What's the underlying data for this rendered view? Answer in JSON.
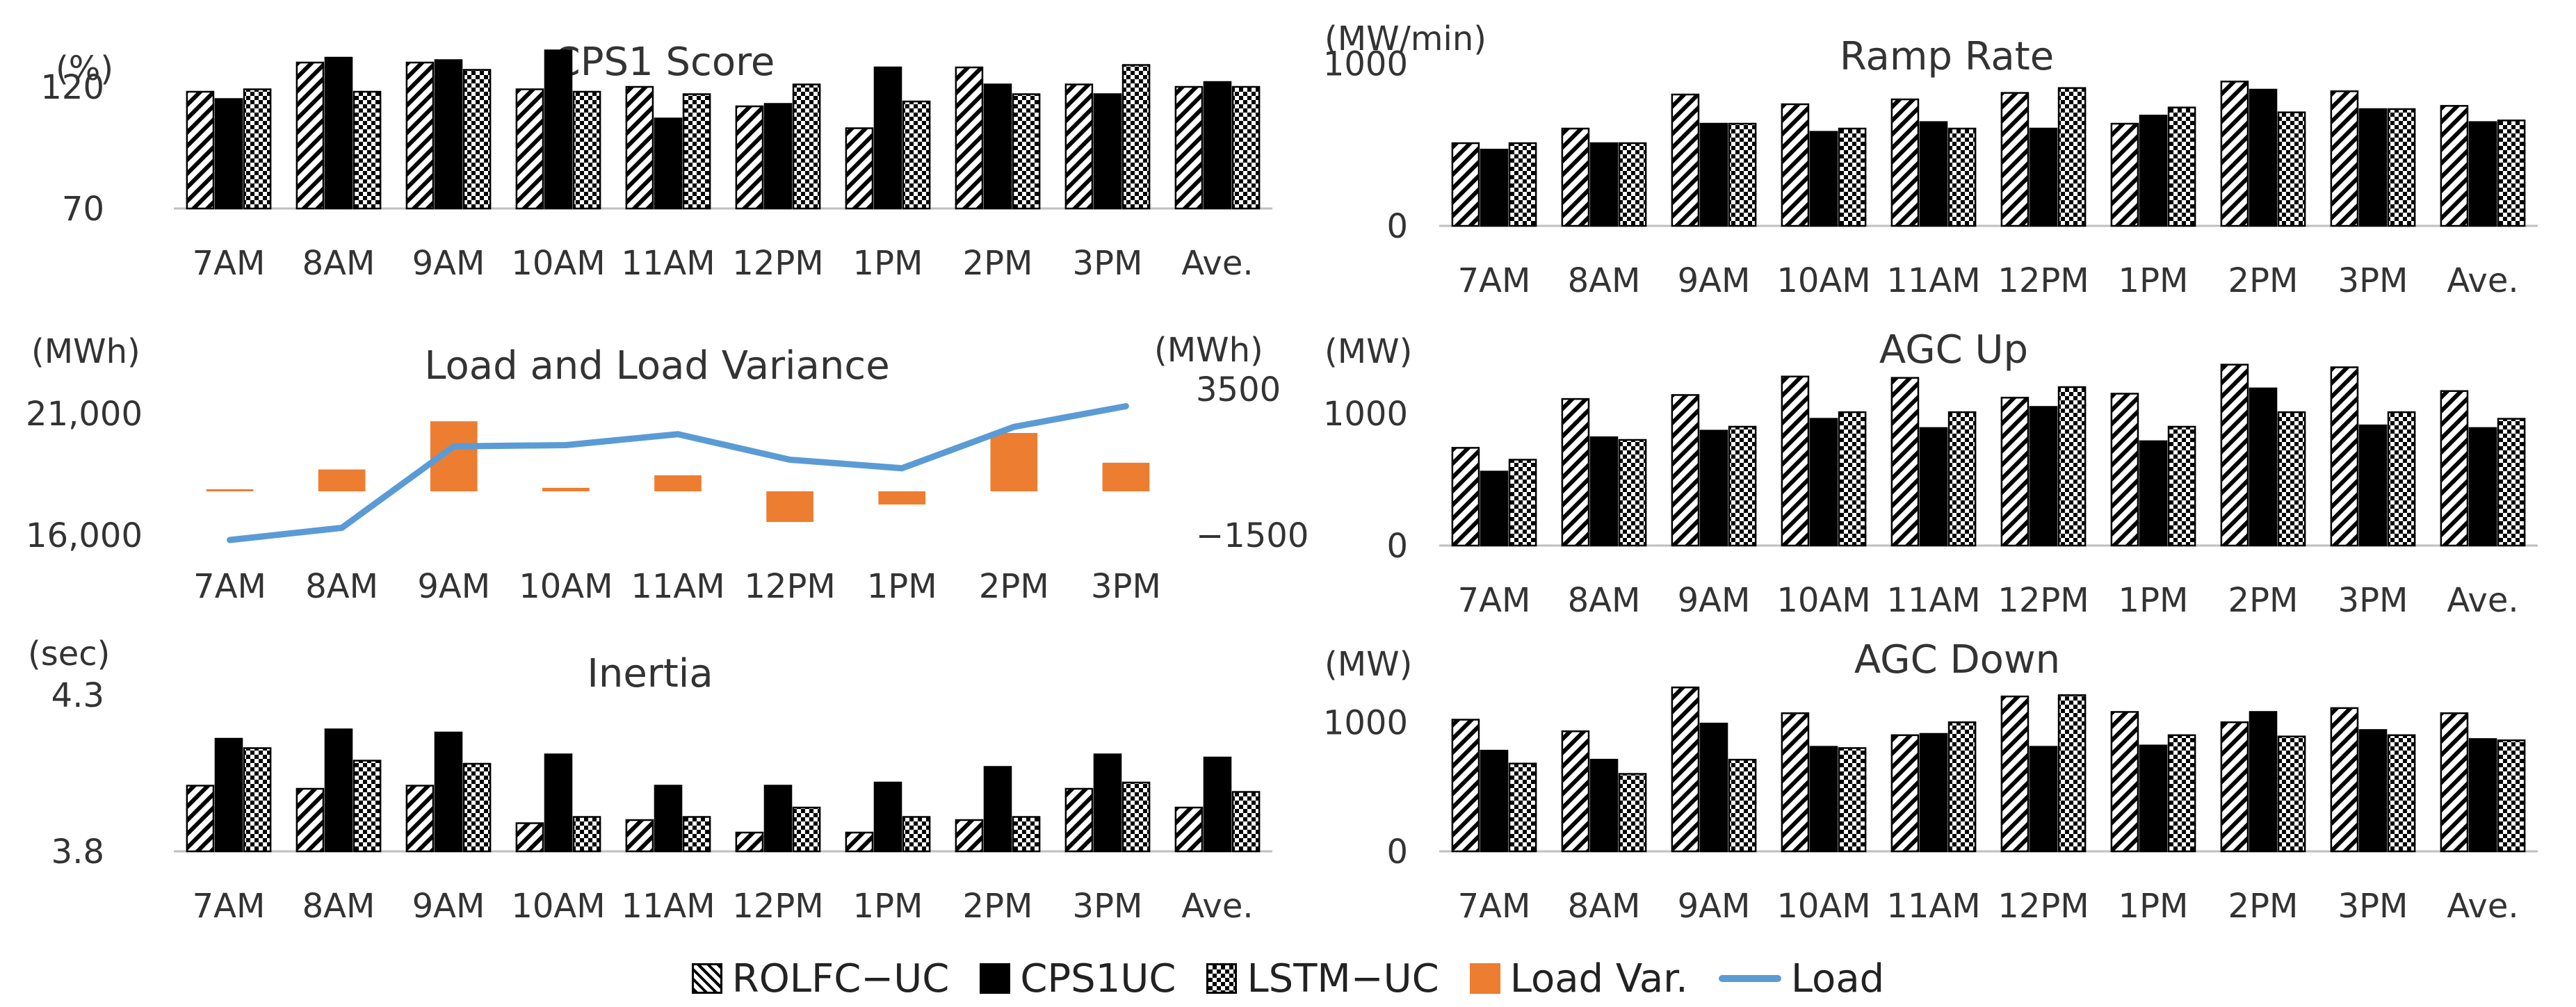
{
  "colors": {
    "load_var": "#ED7D31",
    "load": "#5B9BD5",
    "bar": "#000000"
  },
  "legend": {
    "rolfc": "ROLFC−UC",
    "cps1uc": "CPS1UC",
    "lstm": "LSTM−UC",
    "loadvar": "Load Var.",
    "load": "Load"
  },
  "chart_data": [
    {
      "id": "cps1",
      "type": "bar",
      "title": "CPS1 Score",
      "unit_left": "(%)",
      "categories": [
        "7AM",
        "8AM",
        "9AM",
        "10AM",
        "11AM",
        "12PM",
        "1PM",
        "2PM",
        "3PM",
        "Ave."
      ],
      "ylim": [
        70,
        140
      ],
      "yticks": [
        70,
        120
      ],
      "series": [
        {
          "pattern": "hatch",
          "values": [
            118,
            130,
            130,
            119,
            120,
            112,
            103,
            128,
            121,
            120
          ]
        },
        {
          "pattern": "solid",
          "values": [
            115,
            132,
            131,
            135,
            107,
            113,
            128,
            121,
            117,
            122
          ]
        },
        {
          "pattern": "check",
          "values": [
            119,
            118,
            127,
            118,
            117,
            121,
            114,
            117,
            129,
            120
          ]
        }
      ]
    },
    {
      "id": "ramp",
      "type": "bar",
      "title": "Ramp Rate",
      "unit_left": "(MW/min)",
      "categories": [
        "7AM",
        "8AM",
        "9AM",
        "10AM",
        "11AM",
        "12PM",
        "1PM",
        "2PM",
        "3PM",
        "Ave."
      ],
      "ylim": [
        0,
        1050
      ],
      "yticks": [
        0,
        1000
      ],
      "series": [
        {
          "pattern": "hatch",
          "values": [
            510,
            600,
            810,
            750,
            780,
            820,
            630,
            890,
            830,
            740
          ]
        },
        {
          "pattern": "solid",
          "values": [
            470,
            510,
            630,
            580,
            640,
            600,
            680,
            840,
            720,
            640
          ]
        },
        {
          "pattern": "check",
          "values": [
            510,
            510,
            630,
            600,
            600,
            850,
            730,
            700,
            720,
            650
          ]
        }
      ]
    },
    {
      "id": "load",
      "type": "bar",
      "combo_line": true,
      "title": "Load and Load Variance",
      "unit_left": "(MWh)",
      "unit_right": "(MWh)",
      "categories": [
        "7AM",
        "8AM",
        "9AM",
        "10AM",
        "11AM",
        "12PM",
        "1PM",
        "2PM",
        "3PM"
      ],
      "ylim": [
        16000,
        22000
      ],
      "yticks": [
        16000,
        21000
      ],
      "y2lim": [
        -1500,
        3500
      ],
      "y2ticks": [
        -1500,
        3500
      ],
      "bars": [
        70,
        750,
        2400,
        120,
        550,
        -1050,
        -450,
        2000,
        980
      ],
      "line": [
        15800,
        16300,
        19650,
        19700,
        20150,
        19100,
        18750,
        20450,
        21300
      ]
    },
    {
      "id": "agcup",
      "type": "bar",
      "title": "AGC Up",
      "unit_left": "(MW)",
      "categories": [
        "7AM",
        "8AM",
        "9AM",
        "10AM",
        "11AM",
        "12PM",
        "1PM",
        "2PM",
        "3PM",
        "Ave."
      ],
      "ylim": [
        0,
        1500
      ],
      "yticks": [
        0,
        1000
      ],
      "series": [
        {
          "pattern": "hatch",
          "values": [
            740,
            1110,
            1140,
            1280,
            1270,
            1120,
            1150,
            1370,
            1350,
            1170
          ]
        },
        {
          "pattern": "solid",
          "values": [
            560,
            820,
            870,
            960,
            890,
            1050,
            790,
            1190,
            910,
            890
          ]
        },
        {
          "pattern": "check",
          "values": [
            650,
            800,
            900,
            1010,
            1010,
            1200,
            900,
            1010,
            1010,
            960
          ]
        }
      ]
    },
    {
      "id": "inertia",
      "type": "bar",
      "title": "Inertia",
      "unit_left": "(sec)",
      "categories": [
        "7AM",
        "8AM",
        "9AM",
        "10AM",
        "11AM",
        "12PM",
        "1PM",
        "2PM",
        "3PM",
        "Ave."
      ],
      "ylim": [
        3.8,
        4.3
      ],
      "yticks": [
        3.8,
        4.3
      ],
      "series": [
        {
          "pattern": "hatch",
          "values": [
            4.01,
            4.0,
            4.01,
            3.89,
            3.9,
            3.86,
            3.86,
            3.9,
            4.0,
            3.94
          ]
        },
        {
          "pattern": "solid",
          "values": [
            4.16,
            4.19,
            4.18,
            4.11,
            4.01,
            4.01,
            4.02,
            4.07,
            4.11,
            4.1
          ]
        },
        {
          "pattern": "check",
          "values": [
            4.13,
            4.09,
            4.08,
            3.91,
            3.91,
            3.94,
            3.91,
            3.91,
            4.02,
            3.99
          ]
        }
      ]
    },
    {
      "id": "agcdown",
      "type": "bar",
      "title": "AGC Down",
      "unit_left": "(MW)",
      "categories": [
        "7AM",
        "8AM",
        "9AM",
        "10AM",
        "11AM",
        "12PM",
        "1PM",
        "2PM",
        "3PM",
        "Ave."
      ],
      "ylim": [
        0,
        1400
      ],
      "yticks": [
        0,
        1000
      ],
      "series": [
        {
          "pattern": "hatch",
          "values": [
            1020,
            930,
            1270,
            1070,
            900,
            1200,
            1080,
            1000,
            1110,
            1070
          ]
        },
        {
          "pattern": "solid",
          "values": [
            780,
            710,
            990,
            810,
            910,
            810,
            820,
            1080,
            940,
            870
          ]
        },
        {
          "pattern": "check",
          "values": [
            680,
            600,
            710,
            800,
            1000,
            1210,
            900,
            890,
            900,
            860
          ]
        }
      ]
    }
  ]
}
